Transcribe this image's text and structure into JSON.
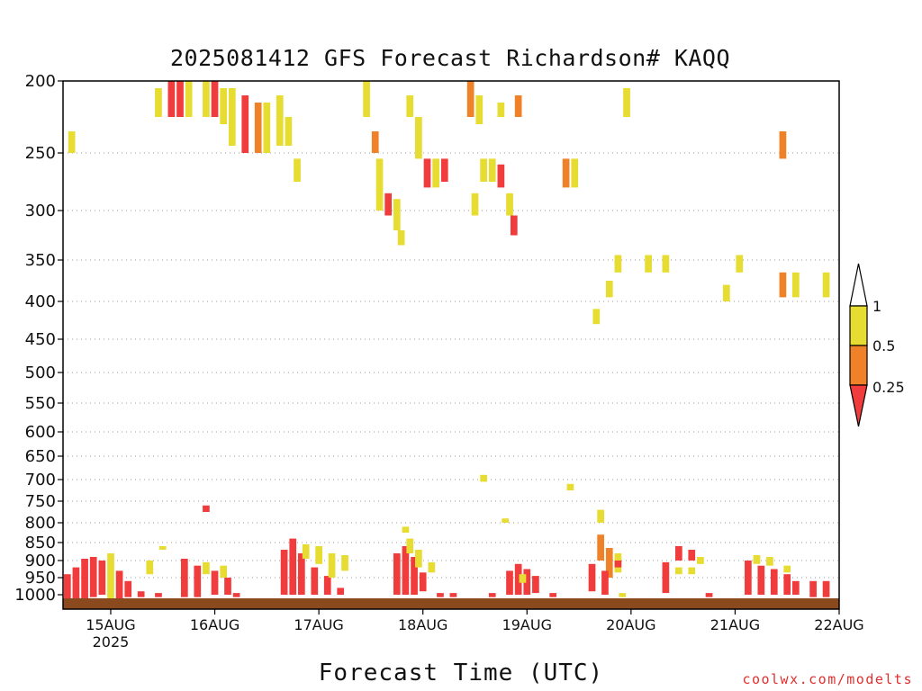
{
  "chart_data": {
    "type": "heatmap",
    "title": "2025081412 GFS Forecast Richardson# KAQQ",
    "xlabel": "Forecast Time (UTC)",
    "ylabel": "",
    "x_ticks": [
      "15AUG",
      "16AUG",
      "17AUG",
      "18AUG",
      "19AUG",
      "20AUG",
      "21AUG",
      "22AUG"
    ],
    "x_year_label": "2025",
    "y_ticks": [
      200,
      250,
      300,
      350,
      400,
      450,
      500,
      550,
      600,
      650,
      700,
      750,
      800,
      850,
      900,
      950,
      1000
    ],
    "ylim": [
      200,
      1030
    ],
    "xlim_hours": [
      -11,
      168
    ],
    "colorbar": {
      "labels": [
        "1",
        "0.5",
        "0.25"
      ],
      "classes": [
        {
          "range": "0.5-1",
          "color": "#e6dc32"
        },
        {
          "range": "0.25-0.5",
          "color": "#ef8228"
        },
        {
          "range": "<0.25",
          "color": "#f03c3c"
        }
      ]
    },
    "cells": [
      {
        "h": -9,
        "p1": 235,
        "p2": 250,
        "c": "y"
      },
      {
        "h": 0,
        "p1": 880,
        "p2": 1015,
        "c": "y"
      },
      {
        "h": -10,
        "p1": 940,
        "p2": 1015,
        "c": "r"
      },
      {
        "h": -8,
        "p1": 920,
        "p2": 1010,
        "c": "r"
      },
      {
        "h": -6,
        "p1": 895,
        "p2": 1010,
        "c": "r"
      },
      {
        "h": -4,
        "p1": 890,
        "p2": 1005,
        "c": "r"
      },
      {
        "h": -2,
        "p1": 900,
        "p2": 1000,
        "c": "r"
      },
      {
        "h": 2,
        "p1": 930,
        "p2": 1010,
        "c": "r"
      },
      {
        "h": 4,
        "p1": 960,
        "p2": 1005,
        "c": "r"
      },
      {
        "h": 7,
        "p1": 990,
        "p2": 1005,
        "c": "r"
      },
      {
        "h": 11,
        "p1": 995,
        "p2": 1005,
        "c": "r"
      },
      {
        "h": 9,
        "p1": 900,
        "p2": 940,
        "c": "y"
      },
      {
        "h": 12,
        "p1": 860,
        "p2": 870,
        "c": "y"
      },
      {
        "h": 11,
        "p1": 205,
        "p2": 225,
        "c": "y"
      },
      {
        "h": 14,
        "p1": 200,
        "p2": 225,
        "c": "r"
      },
      {
        "h": 16,
        "p1": 200,
        "p2": 225,
        "c": "r"
      },
      {
        "h": 18,
        "p1": 200,
        "p2": 225,
        "c": "y"
      },
      {
        "h": 22,
        "p1": 200,
        "p2": 225,
        "c": "y"
      },
      {
        "h": 24,
        "p1": 200,
        "p2": 225,
        "c": "r"
      },
      {
        "h": 26,
        "p1": 205,
        "p2": 230,
        "c": "y"
      },
      {
        "h": 28,
        "p1": 205,
        "p2": 245,
        "c": "y"
      },
      {
        "h": 31,
        "p1": 210,
        "p2": 250,
        "c": "r"
      },
      {
        "h": 34,
        "p1": 215,
        "p2": 250,
        "c": "o"
      },
      {
        "h": 36,
        "p1": 215,
        "p2": 250,
        "c": "y"
      },
      {
        "h": 39,
        "p1": 210,
        "p2": 245,
        "c": "y"
      },
      {
        "h": 41,
        "p1": 225,
        "p2": 245,
        "c": "y"
      },
      {
        "h": 43,
        "p1": 255,
        "p2": 275,
        "c": "y"
      },
      {
        "h": 22,
        "p1": 760,
        "p2": 775,
        "c": "r"
      },
      {
        "h": 17,
        "p1": 895,
        "p2": 1005,
        "c": "r"
      },
      {
        "h": 20,
        "p1": 915,
        "p2": 1005,
        "c": "r"
      },
      {
        "h": 24,
        "p1": 930,
        "p2": 1000,
        "c": "r"
      },
      {
        "h": 27,
        "p1": 950,
        "p2": 1000,
        "c": "r"
      },
      {
        "h": 22,
        "p1": 905,
        "p2": 940,
        "c": "y"
      },
      {
        "h": 26,
        "p1": 915,
        "p2": 950,
        "c": "y"
      },
      {
        "h": 29,
        "p1": 995,
        "p2": 1005,
        "c": "r"
      },
      {
        "h": 40,
        "p1": 870,
        "p2": 1000,
        "c": "r"
      },
      {
        "h": 42,
        "p1": 840,
        "p2": 1000,
        "c": "r"
      },
      {
        "h": 44,
        "p1": 880,
        "p2": 1000,
        "c": "r"
      },
      {
        "h": 47,
        "p1": 920,
        "p2": 1000,
        "c": "r"
      },
      {
        "h": 50,
        "p1": 945,
        "p2": 1000,
        "c": "r"
      },
      {
        "h": 53,
        "p1": 980,
        "p2": 1000,
        "c": "r"
      },
      {
        "h": 45,
        "p1": 855,
        "p2": 895,
        "c": "y"
      },
      {
        "h": 48,
        "p1": 860,
        "p2": 910,
        "c": "y"
      },
      {
        "h": 51,
        "p1": 880,
        "p2": 950,
        "c": "y"
      },
      {
        "h": 54,
        "p1": 885,
        "p2": 930,
        "c": "y"
      },
      {
        "h": 59,
        "p1": 200,
        "p2": 225,
        "c": "y"
      },
      {
        "h": 61,
        "p1": 235,
        "p2": 250,
        "c": "o"
      },
      {
        "h": 62,
        "p1": 255,
        "p2": 300,
        "c": "y"
      },
      {
        "h": 64,
        "p1": 285,
        "p2": 305,
        "c": "r"
      },
      {
        "h": 66,
        "p1": 290,
        "p2": 320,
        "c": "y"
      },
      {
        "h": 67,
        "p1": 320,
        "p2": 335,
        "c": "y"
      },
      {
        "h": 69,
        "p1": 210,
        "p2": 225,
        "c": "y"
      },
      {
        "h": 71,
        "p1": 225,
        "p2": 255,
        "c": "y"
      },
      {
        "h": 73,
        "p1": 255,
        "p2": 280,
        "c": "r"
      },
      {
        "h": 75,
        "p1": 255,
        "p2": 280,
        "c": "y"
      },
      {
        "h": 77,
        "p1": 255,
        "p2": 275,
        "c": "r"
      },
      {
        "h": 66,
        "p1": 880,
        "p2": 1000,
        "c": "r"
      },
      {
        "h": 68,
        "p1": 860,
        "p2": 1000,
        "c": "r"
      },
      {
        "h": 70,
        "p1": 890,
        "p2": 1000,
        "c": "r"
      },
      {
        "h": 72,
        "p1": 935,
        "p2": 990,
        "c": "r"
      },
      {
        "h": 69,
        "p1": 840,
        "p2": 880,
        "c": "y"
      },
      {
        "h": 71,
        "p1": 870,
        "p2": 920,
        "c": "y"
      },
      {
        "h": 74,
        "p1": 905,
        "p2": 935,
        "c": "y"
      },
      {
        "h": 68,
        "p1": 810,
        "p2": 825,
        "c": "y"
      },
      {
        "h": 76,
        "p1": 995,
        "p2": 1005,
        "c": "r"
      },
      {
        "h": 79,
        "p1": 995,
        "p2": 1005,
        "c": "r"
      },
      {
        "h": 83,
        "p1": 200,
        "p2": 225,
        "c": "o"
      },
      {
        "h": 85,
        "p1": 210,
        "p2": 230,
        "c": "y"
      },
      {
        "h": 84,
        "p1": 285,
        "p2": 305,
        "c": "y"
      },
      {
        "h": 86,
        "p1": 255,
        "p2": 275,
        "c": "y"
      },
      {
        "h": 88,
        "p1": 255,
        "p2": 275,
        "c": "y"
      },
      {
        "h": 90,
        "p1": 260,
        "p2": 280,
        "c": "r"
      },
      {
        "h": 86,
        "p1": 690,
        "p2": 705,
        "c": "y"
      },
      {
        "h": 88,
        "p1": 995,
        "p2": 1005,
        "c": "r"
      },
      {
        "h": 90,
        "p1": 215,
        "p2": 225,
        "c": "y"
      },
      {
        "h": 94,
        "p1": 210,
        "p2": 225,
        "c": "o"
      },
      {
        "h": 91,
        "p1": 790,
        "p2": 800,
        "c": "y"
      },
      {
        "h": 92,
        "p1": 285,
        "p2": 305,
        "c": "y"
      },
      {
        "h": 93,
        "p1": 305,
        "p2": 325,
        "c": "r"
      },
      {
        "h": 92,
        "p1": 930,
        "p2": 1000,
        "c": "r"
      },
      {
        "h": 94,
        "p1": 910,
        "p2": 1000,
        "c": "r"
      },
      {
        "h": 96,
        "p1": 925,
        "p2": 1000,
        "c": "r"
      },
      {
        "h": 98,
        "p1": 945,
        "p2": 995,
        "c": "r"
      },
      {
        "h": 95,
        "p1": 940,
        "p2": 965,
        "c": "y"
      },
      {
        "h": 102,
        "p1": 995,
        "p2": 1005,
        "c": "r"
      },
      {
        "h": 105,
        "p1": 255,
        "p2": 280,
        "c": "o"
      },
      {
        "h": 107,
        "p1": 255,
        "p2": 280,
        "c": "y"
      },
      {
        "h": 106,
        "p1": 710,
        "p2": 725,
        "c": "y"
      },
      {
        "h": 113,
        "p1": 770,
        "p2": 800,
        "c": "y"
      },
      {
        "h": 113,
        "p1": 830,
        "p2": 900,
        "c": "o"
      },
      {
        "h": 115,
        "p1": 865,
        "p2": 950,
        "c": "o"
      },
      {
        "h": 117,
        "p1": 880,
        "p2": 935,
        "c": "y"
      },
      {
        "h": 111,
        "p1": 910,
        "p2": 990,
        "c": "r"
      },
      {
        "h": 114,
        "p1": 930,
        "p2": 1000,
        "c": "r"
      },
      {
        "h": 117,
        "p1": 900,
        "p2": 920,
        "c": "r"
      },
      {
        "h": 112,
        "p1": 410,
        "p2": 430,
        "c": "y"
      },
      {
        "h": 115,
        "p1": 375,
        "p2": 395,
        "c": "y"
      },
      {
        "h": 117,
        "p1": 345,
        "p2": 365,
        "c": "y"
      },
      {
        "h": 119,
        "p1": 205,
        "p2": 225,
        "c": "y"
      },
      {
        "h": 118,
        "p1": 995,
        "p2": 1005,
        "c": "y"
      },
      {
        "h": 124,
        "p1": 345,
        "p2": 365,
        "c": "y"
      },
      {
        "h": 128,
        "p1": 345,
        "p2": 365,
        "c": "y"
      },
      {
        "h": 128,
        "p1": 905,
        "p2": 995,
        "c": "r"
      },
      {
        "h": 131,
        "p1": 860,
        "p2": 900,
        "c": "r"
      },
      {
        "h": 134,
        "p1": 870,
        "p2": 900,
        "c": "r"
      },
      {
        "h": 131,
        "p1": 920,
        "p2": 940,
        "c": "y"
      },
      {
        "h": 134,
        "p1": 920,
        "p2": 940,
        "c": "y"
      },
      {
        "h": 136,
        "p1": 890,
        "p2": 910,
        "c": "y"
      },
      {
        "h": 138,
        "p1": 995,
        "p2": 1005,
        "c": "r"
      },
      {
        "h": 142,
        "p1": 380,
        "p2": 400,
        "c": "y"
      },
      {
        "h": 145,
        "p1": 345,
        "p2": 365,
        "c": "y"
      },
      {
        "h": 147,
        "p1": 900,
        "p2": 1000,
        "c": "r"
      },
      {
        "h": 150,
        "p1": 915,
        "p2": 1000,
        "c": "r"
      },
      {
        "h": 153,
        "p1": 925,
        "p2": 1000,
        "c": "r"
      },
      {
        "h": 156,
        "p1": 940,
        "p2": 1000,
        "c": "r"
      },
      {
        "h": 158,
        "p1": 960,
        "p2": 1000,
        "c": "r"
      },
      {
        "h": 149,
        "p1": 885,
        "p2": 910,
        "c": "y"
      },
      {
        "h": 152,
        "p1": 890,
        "p2": 915,
        "c": "y"
      },
      {
        "h": 156,
        "p1": 915,
        "p2": 935,
        "c": "y"
      },
      {
        "h": 162,
        "p1": 960,
        "p2": 1005,
        "c": "r"
      },
      {
        "h": 165,
        "p1": 960,
        "p2": 1005,
        "c": "r"
      },
      {
        "h": 155,
        "p1": 235,
        "p2": 255,
        "c": "o"
      },
      {
        "h": 155,
        "p1": 365,
        "p2": 395,
        "c": "o"
      },
      {
        "h": 158,
        "p1": 365,
        "p2": 395,
        "c": "y"
      },
      {
        "h": 165,
        "p1": 365,
        "p2": 395,
        "c": "y"
      }
    ]
  },
  "credit": "coolwx.com/modelts"
}
